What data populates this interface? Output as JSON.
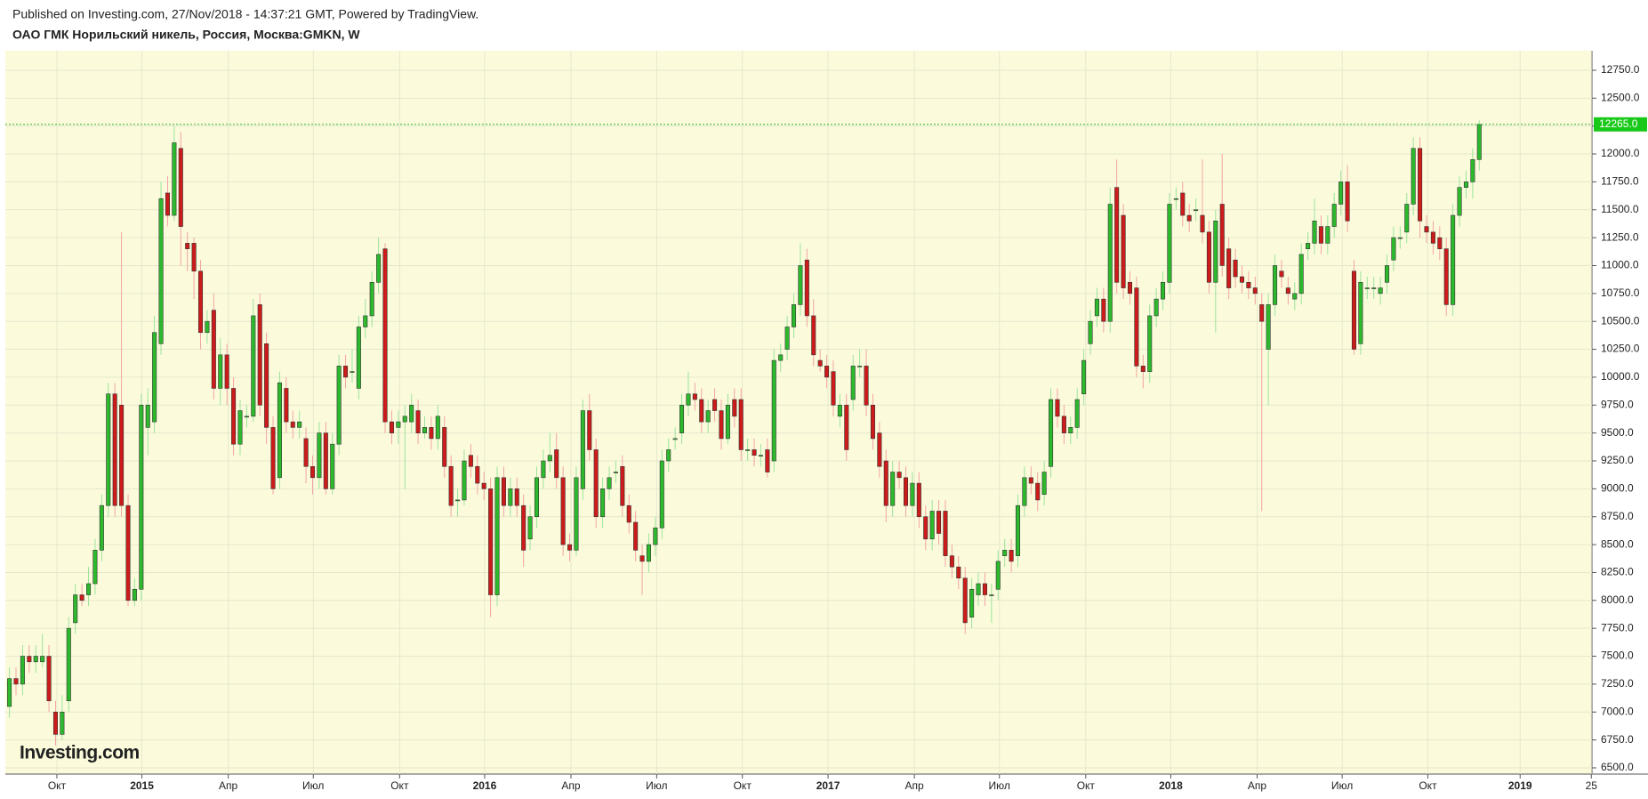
{
  "header": {
    "published": "Published on Investing.com, 27/Nov/2018 - 14:37:21 GMT, Powered by TradingView.",
    "logo": "Investing.com"
  },
  "chart_data": {
    "type": "candlestick",
    "title": "ОАО ГМК Норильский никель, Россия, Москва:GMKN, W",
    "up_color": "#2db82d",
    "down_color": "#cc1b1b",
    "grid": true,
    "ylim": [
      6444,
      12925
    ],
    "xlim": [
      -0.62,
      240.1
    ],
    "yticks": [
      {
        "value": 6500,
        "label": "6500.0"
      },
      {
        "value": 6750,
        "label": "6750.0"
      },
      {
        "value": 7000,
        "label": "7000.0"
      },
      {
        "value": 7250,
        "label": "7250.0"
      },
      {
        "value": 7500,
        "label": "7500.0"
      },
      {
        "value": 7750,
        "label": "7750.0"
      },
      {
        "value": 8000,
        "label": "8000.0"
      },
      {
        "value": 8250,
        "label": "8250.0"
      },
      {
        "value": 8500,
        "label": "8500.0"
      },
      {
        "value": 8750,
        "label": "8750.0"
      },
      {
        "value": 9000,
        "label": "9000.0"
      },
      {
        "value": 9250,
        "label": "9250.0"
      },
      {
        "value": 9500,
        "label": "9500.0"
      },
      {
        "value": 9750,
        "label": "9750.0"
      },
      {
        "value": 10000,
        "label": "10000.0"
      },
      {
        "value": 10250,
        "label": "10250.0"
      },
      {
        "value": 10500,
        "label": "10500.0"
      },
      {
        "value": 10750,
        "label": "10750.0"
      },
      {
        "value": 11000,
        "label": "11000.0"
      },
      {
        "value": 11250,
        "label": "11250.0"
      },
      {
        "value": 11500,
        "label": "11500.0"
      },
      {
        "value": 11750,
        "label": "11750.0"
      },
      {
        "value": 12000,
        "label": "12000.0"
      },
      {
        "value": 12250,
        "label": "12250.0"
      },
      {
        "value": 12500,
        "label": "12500.0"
      },
      {
        "value": 12750,
        "label": "12750.0"
      }
    ],
    "xticks": [
      {
        "value": 7.2,
        "label": "Окт"
      },
      {
        "value": 20.1,
        "label": "2015"
      },
      {
        "value": 33.2,
        "label": "Апр"
      },
      {
        "value": 46.1,
        "label": "Июл"
      },
      {
        "value": 59.2,
        "label": "Окт"
      },
      {
        "value": 72.1,
        "label": "2016"
      },
      {
        "value": 85.2,
        "label": "Апр"
      },
      {
        "value": 98.2,
        "label": "Июл"
      },
      {
        "value": 111.2,
        "label": "Окт"
      },
      {
        "value": 124.2,
        "label": "2017"
      },
      {
        "value": 137.3,
        "label": "Апр"
      },
      {
        "value": 150.2,
        "label": "Июл"
      },
      {
        "value": 163.3,
        "label": "Окт"
      },
      {
        "value": 176.2,
        "label": "2018"
      },
      {
        "value": 189.3,
        "label": "Апр"
      },
      {
        "value": 202.2,
        "label": "Июл"
      },
      {
        "value": 215.2,
        "label": "Окт"
      },
      {
        "value": 229.2,
        "label": "2019"
      },
      {
        "value": 240.0,
        "label": "25"
      }
    ],
    "last_price": {
      "value": 12265,
      "label": "12265.0"
    },
    "open": [
      7050,
      7300,
      7250,
      7500,
      7450,
      7450,
      7500,
      7000,
      6800,
      7100,
      7800,
      8050,
      8050,
      8150,
      8450,
      8850,
      9850,
      9750,
      8850,
      8000,
      8100,
      9550,
      9600,
      10300,
      11650,
      11450,
      12050,
      11200,
      11200,
      10950,
      10400,
      10600,
      9900,
      10200,
      9900,
      9400,
      9650,
      9650,
      10650,
      10300,
      9550,
      9100,
      9900,
      9600,
      9550,
      9450,
      9200,
      9100,
      9500,
      9000,
      9400,
      10100,
      10050,
      9900,
      10450,
      10550,
      10850,
      11150,
      9600,
      9550,
      9600,
      9600,
      9700,
      9500,
      9550,
      9450,
      9550,
      9200,
      8900,
      8900,
      9300,
      9200,
      9050,
      9000,
      8050,
      9100,
      8850,
      9000,
      8850,
      8550,
      8750,
      9100,
      9250,
      9350,
      9100,
      8500,
      8450,
      9000,
      9700,
      9350,
      8750,
      9000,
      9150,
      9200,
      8850,
      8700,
      8400,
      8350,
      8500,
      8650,
      9250,
      9450,
      9500,
      9750,
      9850,
      9800,
      9600,
      9800,
      9700,
      9450,
      9800,
      9800,
      9350,
      9350,
      9300,
      9350,
      9250,
      10150,
      10250,
      10450,
      10650,
      11050,
      10550,
      10150,
      10100,
      10050,
      9650,
      9750,
      9800,
      10100,
      10100,
      9750,
      9500,
      9250,
      8850,
      9150,
      9100,
      8850,
      9050,
      8750,
      8550,
      8800,
      8800,
      8400,
      8300,
      8200,
      7850,
      8050,
      8150,
      8050,
      8100,
      8400,
      8450,
      8400,
      8850,
      9100,
      9050,
      8950,
      9200,
      9800,
      9650,
      9500,
      9550,
      9850,
      10300,
      10550,
      10700,
      10500,
      11700,
      11450,
      10850,
      10800,
      10100,
      10050,
      10550,
      10700,
      10850,
      11600,
      11650,
      11450,
      11500,
      11450,
      11300,
      10850,
      11550,
      11150,
      11050,
      10900,
      10850,
      10800,
      10650,
      10250,
      10650,
      10950,
      10800,
      10700,
      10750,
      11150,
      11200,
      11350,
      11200,
      11350,
      11550,
      11750,
      10950,
      10300,
      10800,
      10800,
      10750,
      10850,
      11050,
      11250,
      11300,
      11550,
      12050,
      11350,
      11300,
      11250,
      11150,
      10650,
      11450,
      11700,
      11750,
      11950
    ],
    "high": [
      7400,
      7400,
      7600,
      7600,
      7600,
      7700,
      7600,
      7100,
      7150,
      7850,
      8150,
      8150,
      8300,
      8550,
      8950,
      9950,
      9950,
      11300,
      8950,
      8200,
      9850,
      9900,
      10550,
      11750,
      11800,
      12250,
      12200,
      11300,
      11250,
      11050,
      10600,
      10750,
      10350,
      10300,
      10000,
      9800,
      9750,
      10700,
      10750,
      10400,
      9650,
      10050,
      10000,
      9700,
      9700,
      9550,
      9300,
      9600,
      9600,
      9500,
      10200,
      10200,
      10250,
      10550,
      10700,
      10950,
      11250,
      11200,
      9700,
      9700,
      9750,
      9850,
      9800,
      9650,
      9650,
      9750,
      9650,
      9300,
      9000,
      9350,
      9400,
      9300,
      9150,
      9100,
      9200,
      9200,
      9100,
      9100,
      8950,
      8850,
      9200,
      9350,
      9500,
      9500,
      9200,
      8600,
      9200,
      9800,
      9850,
      9450,
      9100,
      9200,
      9250,
      9300,
      8950,
      8800,
      8500,
      8600,
      8750,
      9350,
      9450,
      9550,
      9850,
      10050,
      9950,
      9900,
      9800,
      9900,
      9800,
      9850,
      9900,
      9900,
      9450,
      9450,
      9400,
      9450,
      10250,
      10300,
      10550,
      10750,
      11200,
      11150,
      10700,
      10250,
      10200,
      10150,
      9850,
      9850,
      10200,
      10250,
      10250,
      9850,
      9600,
      9350,
      9250,
      9250,
      9200,
      9150,
      9150,
      8850,
      8900,
      8900,
      8900,
      8500,
      8400,
      8300,
      8200,
      8250,
      8250,
      8150,
      8450,
      8550,
      8550,
      8950,
      9200,
      9200,
      9150,
      9250,
      9900,
      9900,
      9750,
      9650,
      9900,
      10250,
      10600,
      10800,
      10800,
      11700,
      11950,
      11550,
      10950,
      10900,
      10200,
      10650,
      10800,
      10950,
      11650,
      11700,
      11750,
      11550,
      11600,
      11950,
      11400,
      11500,
      12000,
      11250,
      11150,
      11000,
      10950,
      10900,
      10750,
      10750,
      11100,
      11050,
      10900,
      10850,
      11200,
      11300,
      11600,
      11450,
      11450,
      11650,
      11850,
      11900,
      11050,
      10950,
      10900,
      10900,
      10900,
      11100,
      11350,
      11350,
      11650,
      12150,
      12150,
      11450,
      11400,
      11350,
      11250,
      11550,
      11800,
      11850,
      12050,
      12300
    ],
    "low": [
      6950,
      7150,
      7150,
      7350,
      7350,
      7400,
      7000,
      6700,
      6750,
      7000,
      7700,
      7950,
      7950,
      8050,
      8350,
      8750,
      8750,
      8750,
      7950,
      7950,
      8000,
      9300,
      9500,
      10200,
      11350,
      11400,
      11000,
      10950,
      10700,
      10250,
      10300,
      9800,
      9750,
      9750,
      9300,
      9300,
      9550,
      9600,
      9650,
      9400,
      8950,
      9000,
      9500,
      9450,
      9450,
      9050,
      8950,
      9000,
      8950,
      8950,
      9300,
      9900,
      9950,
      9800,
      10350,
      10450,
      10750,
      9500,
      9400,
      9400,
      9000,
      9500,
      9400,
      9450,
      9350,
      9350,
      9100,
      8750,
      8750,
      8850,
      9100,
      8950,
      8900,
      7850,
      7950,
      8750,
      8750,
      8750,
      8300,
      8450,
      8650,
      9000,
      9150,
      9000,
      8400,
      8350,
      8400,
      8900,
      9250,
      8650,
      8650,
      8900,
      9050,
      8750,
      8600,
      8350,
      8050,
      8250,
      8400,
      8550,
      9150,
      9350,
      9400,
      9650,
      9700,
      9500,
      9500,
      9600,
      9350,
      9400,
      9550,
      9250,
      9250,
      9200,
      9200,
      9100,
      9150,
      10050,
      10150,
      10350,
      10550,
      10450,
      10100,
      10050,
      9900,
      9650,
      9550,
      9250,
      9700,
      10000,
      9650,
      9350,
      9100,
      8700,
      8750,
      9000,
      8750,
      8750,
      8650,
      8450,
      8450,
      8500,
      8300,
      8200,
      8100,
      7700,
      7750,
      7950,
      7950,
      7800,
      8000,
      8300,
      8250,
      8300,
      8750,
      8950,
      8800,
      8850,
      9100,
      9550,
      9400,
      9400,
      9450,
      9750,
      10200,
      10450,
      10400,
      10400,
      10750,
      10700,
      10650,
      10000,
      9900,
      9950,
      10450,
      10600,
      10750,
      11500,
      11350,
      11300,
      11400,
      11200,
      10750,
      10400,
      10900,
      10700,
      10800,
      10750,
      10700,
      10650,
      8800,
      9750,
      10550,
      10800,
      10650,
      10600,
      10650,
      11050,
      11100,
      11100,
      11100,
      11250,
      11450,
      11300,
      10200,
      10200,
      10700,
      10700,
      10650,
      10750,
      10950,
      11150,
      11200,
      11450,
      11250,
      11200,
      11100,
      11050,
      10550,
      10550,
      11350,
      11600,
      11600,
      11850
    ],
    "close": [
      7300,
      7250,
      7500,
      7450,
      7500,
      7500,
      7100,
      6800,
      7000,
      7750,
      8050,
      8000,
      8150,
      8450,
      8850,
      9850,
      8850,
      8850,
      8000,
      8100,
      9750,
      9750,
      10400,
      11600,
      11450,
      12100,
      11350,
      11150,
      10950,
      10400,
      10500,
      9900,
      10200,
      9900,
      9400,
      9700,
      9650,
      10550,
      9750,
      9550,
      9000,
      9950,
      9600,
      9550,
      9600,
      9200,
      9100,
      9500,
      9000,
      9400,
      10100,
      10000,
      10050,
      10450,
      10550,
      10850,
      11100,
      9600,
      9500,
      9600,
      9650,
      9750,
      9500,
      9550,
      9450,
      9650,
      9200,
      8850,
      8900,
      9250,
      9200,
      9050,
      9000,
      8050,
      9100,
      8850,
      9000,
      8850,
      8450,
      8750,
      9100,
      9250,
      9300,
      9100,
      8500,
      8450,
      9100,
      9700,
      9350,
      8750,
      9000,
      9100,
      9150,
      8850,
      8700,
      8450,
      8350,
      8500,
      8650,
      9250,
      9350,
      9450,
      9750,
      9850,
      9800,
      9600,
      9700,
      9700,
      9450,
      9750,
      9650,
      9350,
      9350,
      9300,
      9300,
      9150,
      10150,
      10200,
      10450,
      10650,
      11000,
      10550,
      10200,
      10100,
      10000,
      9750,
      9750,
      9350,
      10100,
      10100,
      9750,
      9450,
      9200,
      8850,
      9150,
      9100,
      8850,
      9050,
      8750,
      8550,
      8800,
      8600,
      8400,
      8300,
      8200,
      7800,
      8100,
      8150,
      8050,
      8050,
      8350,
      8450,
      8350,
      8850,
      9100,
      9050,
      8900,
      9150,
      9800,
      9650,
      9500,
      9550,
      9800,
      10150,
      10500,
      10700,
      10500,
      11550,
      10850,
      10800,
      10750,
      10100,
      10050,
      10550,
      10700,
      10850,
      11550,
      11600,
      11450,
      11400,
      11500,
      11300,
      10850,
      11400,
      11000,
      10800,
      10900,
      10850,
      10800,
      10750,
      10500,
      10650,
      11000,
      10900,
      10750,
      10750,
      11100,
      11200,
      11400,
      11200,
      11350,
      11550,
      11750,
      11400,
      10250,
      10850,
      10800,
      10800,
      10800,
      11000,
      11250,
      11250,
      11550,
      12050,
      11400,
      11300,
      11200,
      11150,
      10650,
      11450,
      11700,
      11750,
      11950,
      12265
    ]
  }
}
